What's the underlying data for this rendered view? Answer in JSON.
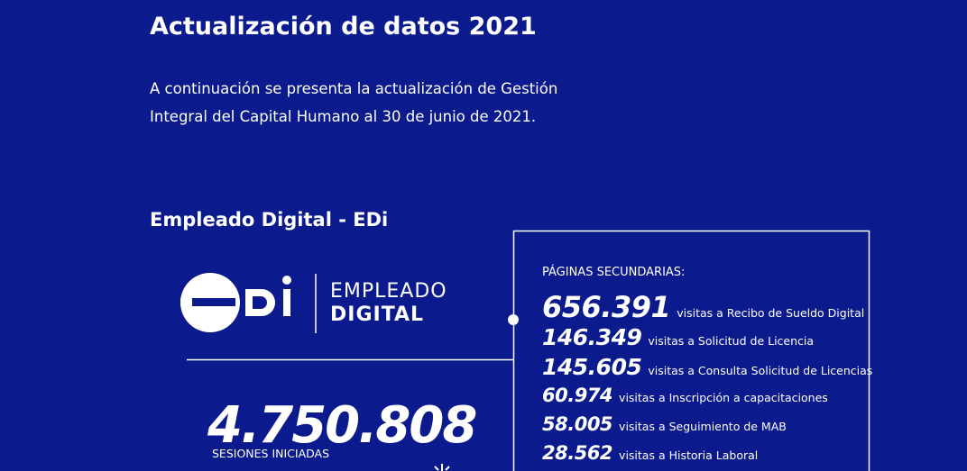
{
  "header": {
    "title": "Actualización de datos 2021",
    "intro": [
      "A continuación se presenta la actualización de Gestión",
      "Integral del Capital Humano al 30 de junio de 2021."
    ]
  },
  "section": {
    "title": "Empleado Digital - EDi",
    "logo": {
      "line1": "EMPLEADO",
      "line2": "DIGITAL"
    },
    "total": {
      "number": "4.750.808",
      "label": "SESIONES INICIADAS"
    },
    "secondary": {
      "title": "PÁGINAS SECUNDARIAS:",
      "items": [
        {
          "number": "656.391",
          "label": "visitas a Recibo de Sueldo Digital"
        },
        {
          "number": "146.349",
          "label": "visitas a Solicitud de Licencia"
        },
        {
          "number": "145.605",
          "label": "visitas a Consulta Solicitud de Licencias"
        },
        {
          "number": "60.974",
          "label": "visitas a Inscripción a capacitaciones"
        },
        {
          "number": "58.005",
          "label": "visitas a Seguimiento de MAB"
        },
        {
          "number": "28.562",
          "label": "visitas a Historia Laboral"
        }
      ]
    }
  }
}
